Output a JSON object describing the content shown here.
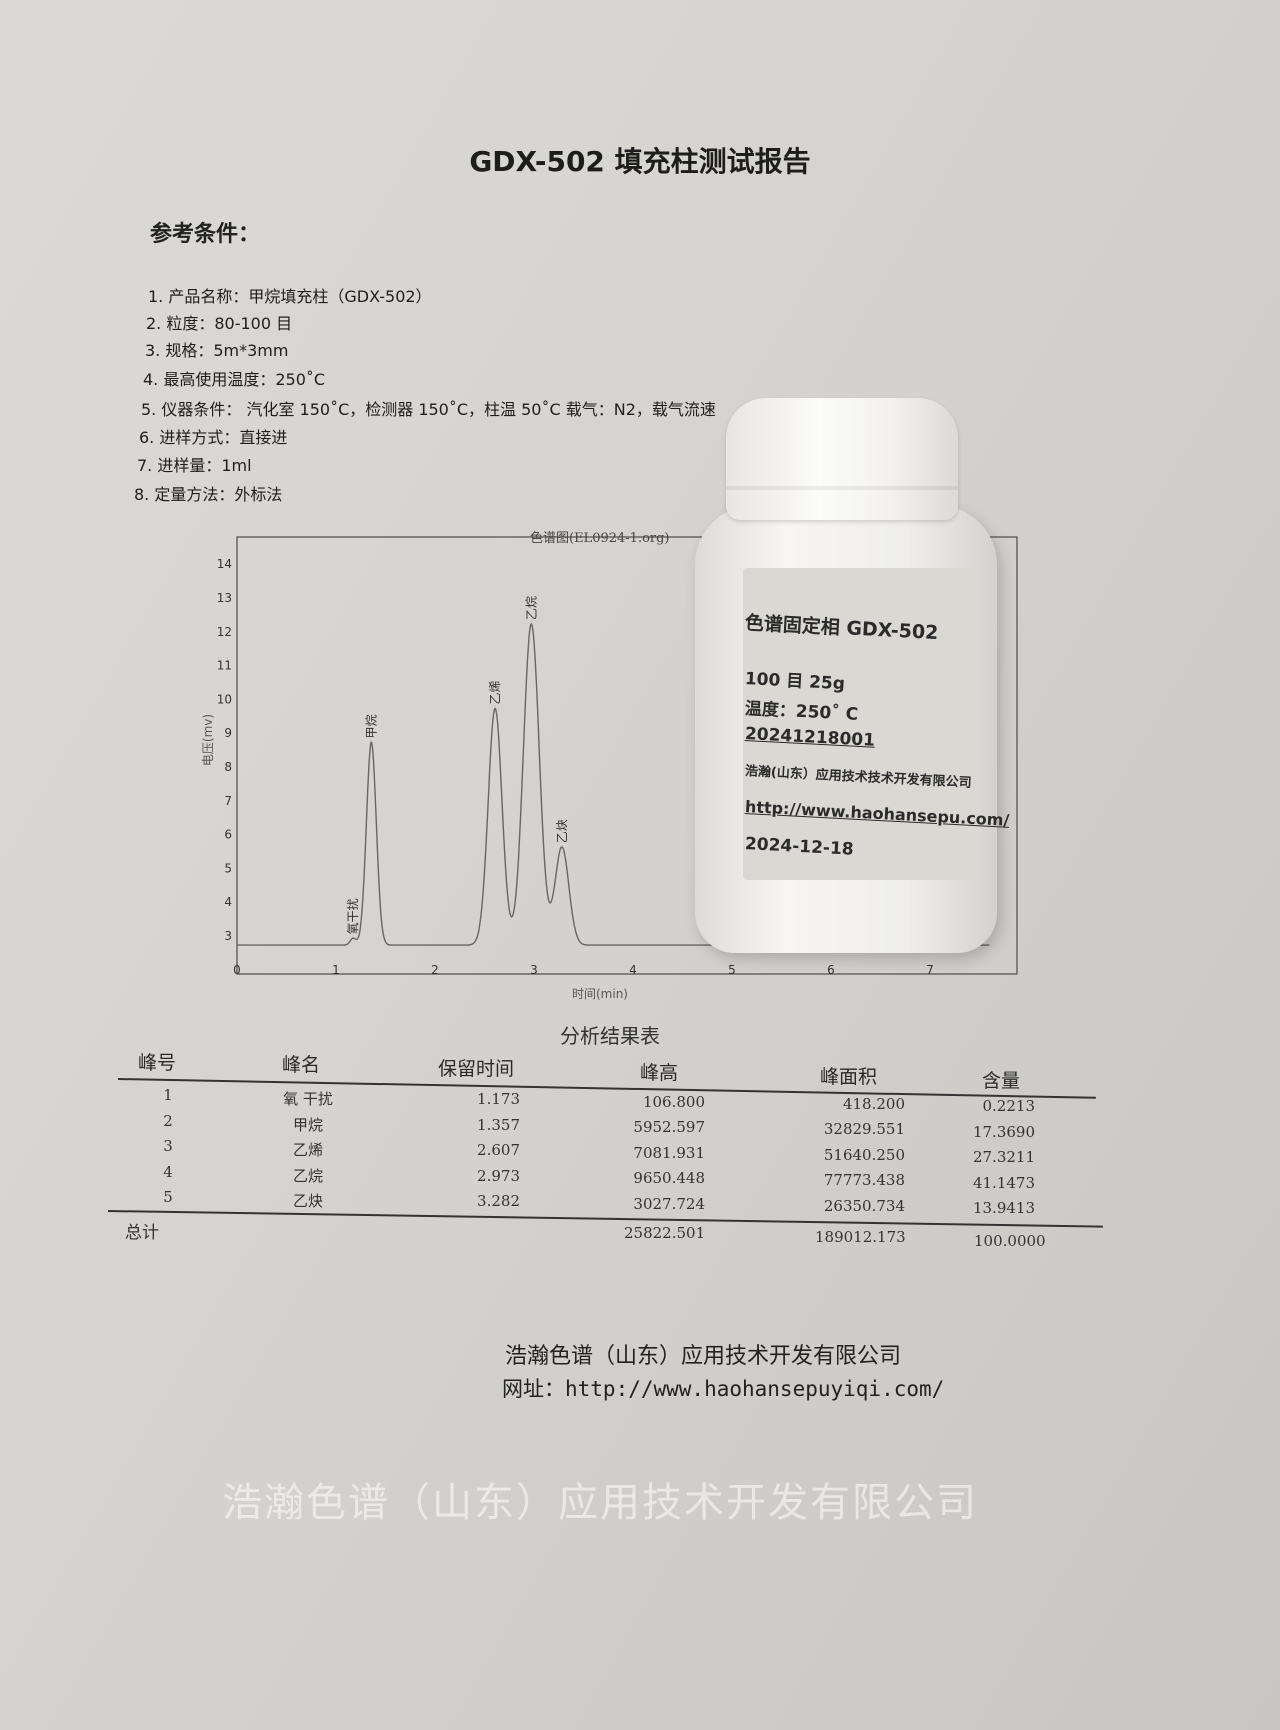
{
  "document": {
    "title": "GDX-502 填充柱测试报告",
    "section_heading": "参考条件：",
    "conditions": [
      "1. 产品名称：甲烷填充柱（GDX-502）",
      "2. 粒度：80-100 目",
      "3. 规格：5m*3mm",
      "4. 最高使用温度：250˚C",
      "5. 仪器条件：  汽化室 150˚C，检测器 150˚C，柱温 50˚C    载气：N2，载气流速",
      "6. 进样方式：直接进",
      "7. 进样量：1ml",
      "8. 定量方法：外标法"
    ],
    "watermark": "浩瀚色谱（山东）应用技术开发有限公司",
    "footer": {
      "company": "浩瀚色谱（山东）应用技术开发有限公司",
      "website": "网址：http://www.haohansepuyiqi.com/"
    }
  },
  "chart_data": {
    "type": "line",
    "title": "色谱图(EL0924-1.org)",
    "xlabel": "时间(min)",
    "ylabel": "电压(mv)",
    "xlim": [
      0,
      7.5
    ],
    "ylim": [
      2.5,
      14.8
    ],
    "x_ticks": [
      "0",
      "1",
      "2",
      "3",
      "4",
      "5",
      "6",
      "7"
    ],
    "y_ticks": [
      "3",
      "4",
      "5",
      "6",
      "7",
      "8",
      "9",
      "10",
      "11",
      "12",
      "13",
      "14"
    ],
    "baseline": 2.7,
    "peaks": [
      {
        "label": "氧干扰",
        "x": 1.173,
        "apex": 2.9
      },
      {
        "label": "甲烷",
        "x": 1.357,
        "apex": 8.7
      },
      {
        "label": "乙烯",
        "x": 2.607,
        "apex": 9.7
      },
      {
        "label": "乙烷",
        "x": 2.973,
        "apex": 12.2
      },
      {
        "label": "乙炔",
        "x": 3.282,
        "apex": 5.6
      }
    ],
    "grid": false
  },
  "results_table": {
    "title": "分析结果表",
    "headers": [
      "峰号",
      "峰名",
      "保留时间",
      "峰高",
      "峰面积",
      "含量"
    ],
    "rows": [
      [
        "1",
        "氧 干扰",
        "1.173",
        "106.800",
        "418.200",
        "0.2213"
      ],
      [
        "2",
        "甲烷",
        "1.357",
        "5952.597",
        "32829.551",
        "17.3690"
      ],
      [
        "3",
        "乙烯",
        "2.607",
        "7081.931",
        "51640.250",
        "27.3211"
      ],
      [
        "4",
        "乙烷",
        "2.973",
        "9650.448",
        "77773.438",
        "41.1473"
      ],
      [
        "5",
        "乙炔",
        "3.282",
        "3027.724",
        "26350.734",
        "13.9413"
      ]
    ],
    "total": {
      "label": "总计",
      "height": "25822.501",
      "area": "189012.173",
      "content": "100.0000"
    }
  },
  "bottle_label": {
    "lines": [
      "色谱固定相   GDX-502",
      "100 目   25g",
      "温度：250˚ C",
      "20241218001",
      "浩瀚(山东）应用技术技术开发有限公司",
      "http://www.haohansepu.com/",
      "2024-12-18"
    ]
  }
}
